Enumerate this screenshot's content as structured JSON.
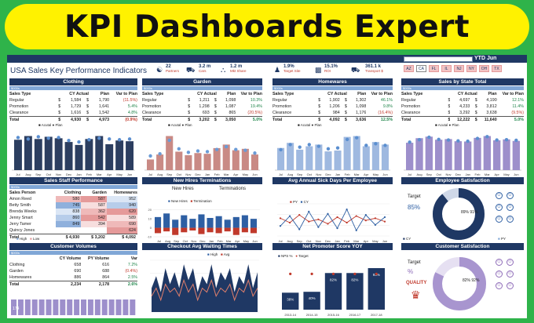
{
  "banner": {
    "title": "KPI Dashboards Expert"
  },
  "dashboard": {
    "title": "USA Sales Key Performance Indicators",
    "period": "YTD Jun",
    "kpis": [
      {
        "value": "22",
        "label": "Partners",
        "icon": "handshake-icon"
      },
      {
        "value": "3.2 m",
        "label": "Cars",
        "icon": "car-icon"
      },
      {
        "value": "1.2 m",
        "label": "Mkt Share",
        "icon": "shop-icon"
      },
      {
        "value": "1.9%",
        "label": "Target Site",
        "icon": "people-icon"
      },
      {
        "value": "15.1%",
        "label": "ROI",
        "icon": "bar-icon"
      },
      {
        "value": "361.1 k",
        "label": "Transport $",
        "icon": "truck-icon"
      }
    ],
    "states": [
      "AZ",
      "CA",
      "FL",
      "IL",
      "NJ",
      "NY",
      "OH",
      "TX"
    ],
    "active_state": "CA"
  },
  "panels": {
    "clothing": {
      "title": "Clothing",
      "sub": "$000s",
      "head": [
        "Sales Type",
        "CY Actual",
        "Plan",
        "Var to Plan"
      ],
      "rows": [
        [
          "Regular",
          "$",
          "1,584",
          "$",
          "1,790",
          "(11.5%)"
        ],
        [
          "Promotion",
          "$",
          "1,729",
          "$",
          "1,641",
          "5.4%"
        ],
        [
          "Clearance",
          "$",
          "1,616",
          "$",
          "1,542",
          "4.8%"
        ],
        [
          "Total",
          "$",
          "4,930",
          "$",
          "4,973",
          "(0.9%)"
        ]
      ],
      "legend": [
        "Acutal",
        "Plan"
      ]
    },
    "garden": {
      "title": "Garden",
      "sub": "$000s",
      "head": [
        "Sales Type",
        "CY Actual",
        "Plan",
        "Var to Plan"
      ],
      "rows": [
        [
          "Regular",
          "$",
          "1,211",
          "$",
          "1,098",
          "10.3%"
        ],
        [
          "Promotion",
          "$",
          "1,298",
          "$",
          "1,087",
          "19.4%"
        ],
        [
          "Clearance",
          "$",
          "693",
          "$",
          "865",
          "(20.5%)"
        ],
        [
          "Total",
          "$",
          "3,202",
          "$",
          "3,050",
          "5.0%"
        ]
      ],
      "legend": [
        "Acutal",
        "Plan"
      ]
    },
    "homewares": {
      "title": "Homewares",
      "sub": "$000s",
      "head": [
        "Sales Type",
        "CY Actual",
        "Plan",
        "Var to Plan"
      ],
      "rows": [
        [
          "Regular",
          "$",
          "1,902",
          "$",
          "1,302",
          "46.1%"
        ],
        [
          "Promotion",
          "$",
          "1,206",
          "$",
          "1,098",
          "9.8%"
        ],
        [
          "Clearance",
          "$",
          "984",
          "$",
          "1,176",
          "(16.4%)"
        ],
        [
          "Total",
          "$",
          "4,092",
          "$",
          "3,636",
          "12.5%"
        ]
      ],
      "legend": [
        "Acutal",
        "Plan"
      ]
    },
    "state": {
      "title": "Sales by State Total",
      "sub": "$000s",
      "head": [
        "Sales Type",
        "CY Actual",
        "Plan",
        "Var to Plan"
      ],
      "rows": [
        [
          "Regular",
          "$",
          "4,697",
          "$",
          "4,190",
          "12.1%"
        ],
        [
          "Promotion",
          "$",
          "4,233",
          "$",
          "3,812",
          "11.4%"
        ],
        [
          "Clearance",
          "$",
          "3,292",
          "$",
          "3,638",
          "(9.5%)"
        ],
        [
          "Total",
          "$",
          "12,222",
          "$",
          "11,640",
          "5.0%"
        ]
      ],
      "legend": [
        "Acutal",
        "Plan"
      ]
    },
    "staff": {
      "title": "Sales Staff Performance",
      "sub": "$000s",
      "head": [
        "Sales Person",
        "Clothing",
        "Garden",
        "Homewares"
      ],
      "rows": [
        [
          "Amon Reed",
          "580",
          "587",
          "952"
        ],
        [
          "Betty Smith",
          "745",
          "587",
          "940"
        ],
        [
          "Brenda Weeks",
          "838",
          "362",
          "620"
        ],
        [
          "Jenny Smart",
          "860",
          "542",
          "589"
        ],
        [
          "Jerry Tamer",
          "849",
          "394",
          "690"
        ],
        [
          "Quincy Jones",
          "",
          "",
          "624"
        ],
        [
          "Total",
          "$ 4,930",
          "$ 3,202",
          "$ 4,092"
        ]
      ],
      "legend": [
        "High",
        "Low"
      ]
    },
    "hires": {
      "title": "New Hires Terminations",
      "left": "New Hires",
      "right": "Terminations",
      "legend": [
        "New Hires",
        "Termination"
      ]
    },
    "sick": {
      "title": "Avg Annual Sick Days Per Employee",
      "legend": [
        "PY",
        "CY"
      ]
    },
    "empsat": {
      "title": "Employee Satisfaction",
      "target_label": "Target",
      "target": "85%",
      "cy_label": "CY",
      "py_label": "PY",
      "cy_val": "89% 91%"
    },
    "volumes": {
      "title": "Customer Volumes",
      "sub": "$000s",
      "head": [
        "",
        "CY Volume",
        "PY Volume",
        "Var"
      ],
      "rows": [
        [
          "Clothing",
          "658",
          "616",
          "7.2%"
        ],
        [
          "Garden",
          "690",
          "688",
          "(0.4%)"
        ],
        [
          "Homewares",
          "886",
          "864",
          "2.5%"
        ],
        [
          "Total",
          "2,234",
          "2,178",
          "2.6%"
        ]
      ]
    },
    "waiting": {
      "title": "Checkout Avg Waiting Times",
      "legend": [
        "High",
        "Avg"
      ]
    },
    "nps": {
      "title": "Net Promoter Score YOY",
      "legend": [
        "NPS %",
        "Target"
      ]
    },
    "custsat": {
      "title": "Customer Satisfaction",
      "target_label": "Target",
      "target": "%",
      "val": "82% 92%",
      "quality": "QUALITY"
    }
  },
  "chart_data": [
    {
      "type": "bar",
      "title": "Clothing",
      "categories": [
        "Jul",
        "Aug",
        "Sep",
        "Oct",
        "Nov",
        "Dec",
        "Jan",
        "Feb",
        "Mar",
        "Apr",
        "May",
        "Jun"
      ],
      "series": [
        {
          "name": "Acutal",
          "values": [
            410,
            460,
            420,
            450,
            430,
            380,
            340,
            420,
            460,
            350,
            400,
            390
          ]
        },
        {
          "name": "Plan",
          "values": [
            440,
            420,
            450,
            430,
            440,
            400,
            380,
            410,
            430,
            420,
            410,
            420
          ]
        }
      ]
    },
    {
      "type": "bar",
      "title": "Garden",
      "categories": [
        "Jul",
        "Aug",
        "Sep",
        "Oct",
        "Nov",
        "Dec",
        "Jan",
        "Feb",
        "Mar",
        "Apr",
        "May",
        "Jun"
      ],
      "series": [
        {
          "name": "Acutal",
          "values": [
            150,
            220,
            480,
            260,
            210,
            240,
            230,
            310,
            360,
            280,
            300,
            220
          ]
        },
        {
          "name": "Plan",
          "values": [
            200,
            230,
            420,
            300,
            250,
            270,
            260,
            290,
            330,
            290,
            280,
            240
          ]
        }
      ]
    },
    {
      "type": "bar",
      "title": "Homewares",
      "categories": [
        "Jul",
        "Aug",
        "Sep",
        "Oct",
        "Nov",
        "Dec",
        "Jan",
        "Feb",
        "Mar",
        "Apr",
        "May",
        "Jun"
      ],
      "series": [
        {
          "name": "Acutal",
          "values": [
            260,
            320,
            240,
            280,
            300,
            220,
            230,
            390,
            400,
            280,
            330,
            300
          ]
        },
        {
          "name": "Plan",
          "values": [
            240,
            300,
            270,
            300,
            280,
            250,
            260,
            360,
            380,
            290,
            310,
            290
          ]
        }
      ]
    },
    {
      "type": "bar",
      "title": "Sales by State Total",
      "categories": [
        "Jul",
        "Aug",
        "Sep",
        "Oct",
        "Nov",
        "Dec",
        "Jan",
        "Feb",
        "Mar",
        "Apr",
        "May",
        "Jun"
      ],
      "series": [
        {
          "name": "Acutal",
          "values": [
            900,
            1050,
            1100,
            1000,
            1020,
            950,
            940,
            1060,
            1120,
            980,
            1010,
            960
          ]
        },
        {
          "name": "Plan",
          "values": [
            920,
            1000,
            1080,
            1010,
            990,
            960,
            950,
            1040,
            1100,
            990,
            1000,
            980
          ]
        }
      ]
    },
    {
      "type": "bar",
      "title": "New Hires Terminations",
      "categories": [
        "Jul",
        "Aug",
        "Sep",
        "Oct",
        "Nov",
        "Dec",
        "Jan",
        "Feb",
        "Mar",
        "Apr",
        "May",
        "Jun"
      ],
      "ylim": [
        -10,
        25
      ],
      "series": [
        {
          "name": "New Hires",
          "values": [
            12,
            16,
            9,
            14,
            10,
            15,
            11,
            13,
            9,
            12,
            14,
            10
          ]
        },
        {
          "name": "Termination",
          "values": [
            -6,
            -4,
            -8,
            -5,
            -3,
            -7,
            -5,
            -6,
            -4,
            -8,
            -5,
            -6
          ]
        }
      ]
    },
    {
      "type": "line",
      "title": "Avg Annual Sick Days Per Employee",
      "categories": [
        "Jul",
        "Aug",
        "Sep",
        "Oct",
        "Nov",
        "Dec",
        "Jan",
        "Feb",
        "Mar",
        "Apr",
        "May",
        "Jun"
      ],
      "series": [
        {
          "name": "PY",
          "values": [
            6.2,
            5.8,
            6.5,
            5.9,
            6.1,
            5.7,
            6.3,
            5.8,
            6.4,
            6.0,
            6.2,
            5.9
          ]
        },
        {
          "name": "CY",
          "values": [
            5.5,
            6.4,
            5.2,
            6.8,
            5.4,
            6.6,
            5.3,
            7.0,
            5.1,
            6.5,
            5.6,
            6.3
          ]
        }
      ]
    },
    {
      "type": "line",
      "title": "Checkout Avg Waiting Times",
      "series": [
        {
          "name": "High",
          "values": [
            6,
            9,
            5,
            11,
            7,
            10,
            6,
            12,
            8,
            11,
            5,
            9,
            7,
            12,
            6,
            10,
            8,
            11,
            5,
            9,
            7,
            12,
            6,
            10
          ]
        },
        {
          "name": "Avg",
          "values": [
            4,
            6,
            3,
            7,
            5,
            6,
            4,
            8,
            5,
            7,
            3,
            6,
            5,
            8,
            4,
            6,
            5,
            7,
            3,
            6,
            5,
            8,
            4,
            6
          ]
        }
      ]
    },
    {
      "type": "bar",
      "title": "Net Promoter Score YOY",
      "categories": [
        "2013-14",
        "2014-15",
        "2015-16",
        "2016-17",
        "2017-18"
      ],
      "values": [
        38,
        40,
        82,
        82,
        93
      ],
      "labels": [
        "38%",
        "40%",
        "82%",
        "82%",
        "93%"
      ],
      "target": 80
    }
  ]
}
